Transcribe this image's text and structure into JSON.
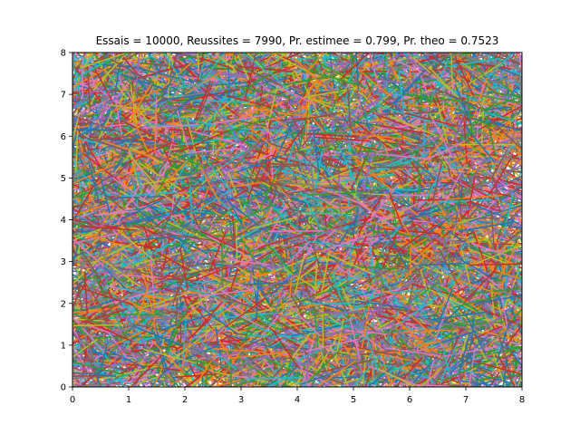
{
  "chart_data": {
    "type": "line",
    "title": "Essais = 10000, Reussites = 7990, Pr. estimee = 0.799, Pr. theo = 0.7523",
    "xlabel": "",
    "ylabel": "",
    "xlim": [
      0,
      8
    ],
    "ylim": [
      0,
      8
    ],
    "x_ticks": [
      "0",
      "1",
      "2",
      "3",
      "4",
      "5",
      "6",
      "7",
      "8"
    ],
    "y_ticks": [
      "0",
      "1",
      "2",
      "3",
      "4",
      "5",
      "6",
      "7",
      "8"
    ],
    "grid": false,
    "series_colors": [
      "#1f77b4",
      "#ff7f0e",
      "#2ca02c",
      "#d62728",
      "#9467bd",
      "#8c564b",
      "#e377c2",
      "#7f7f7f",
      "#bcbd22",
      "#17becf"
    ],
    "trials": 10000,
    "successes": 7990,
    "estimated_probability": 0.799,
    "theoretical_probability": 0.7523,
    "needle_length": 1
  }
}
